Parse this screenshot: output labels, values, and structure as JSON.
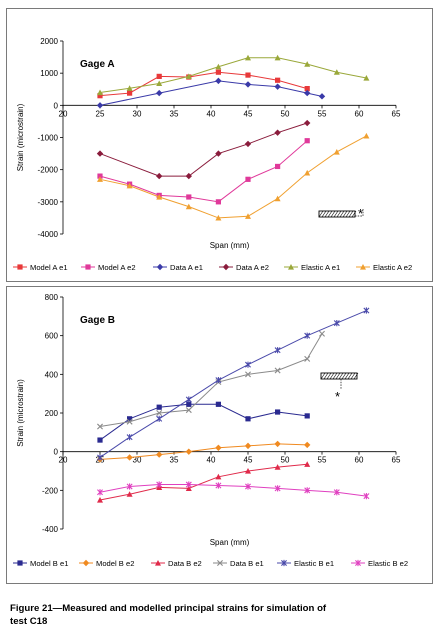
{
  "caption": {
    "line1": "Figure 21—Measured and modelled principal strains for simulation of",
    "line2": "test C18"
  },
  "chart_data": [
    {
      "type": "line",
      "title": "Gage A",
      "xlabel": "Span (mm)",
      "ylabel": "Strain (microstrain)",
      "xlim": [
        20,
        65
      ],
      "ylim": [
        -4000,
        2000
      ],
      "xticks": [
        20,
        25,
        30,
        35,
        40,
        45,
        50,
        55,
        60,
        65
      ],
      "yticks": [
        -4000,
        -3000,
        -2000,
        -1000,
        0,
        1000,
        2000
      ],
      "legend_position": "bottom",
      "series": [
        {
          "name": "Model A e1",
          "color": "#e8393a",
          "marker": "square",
          "x": [
            25,
            29,
            33,
            37,
            41,
            45,
            49,
            53
          ],
          "y": [
            300,
            380,
            900,
            880,
            1030,
            940,
            780,
            520
          ]
        },
        {
          "name": "Model A e2",
          "color": "#e0399a",
          "marker": "square",
          "x": [
            25,
            29,
            33,
            37,
            41,
            45,
            49,
            53
          ],
          "y": [
            -2200,
            -2450,
            -2800,
            -2850,
            -3000,
            -2300,
            -1900,
            -1100
          ]
        },
        {
          "name": "Data A e1",
          "color": "#3a3aa8",
          "marker": "diamond",
          "x": [
            25,
            33,
            41,
            45,
            49,
            53,
            55
          ],
          "y": [
            0,
            380,
            760,
            650,
            580,
            380,
            280
          ]
        },
        {
          "name": "Data A e2",
          "color": "#8a1c3c",
          "marker": "diamond",
          "x": [
            25,
            33,
            37,
            41,
            45,
            49,
            53
          ],
          "y": [
            -1500,
            -2200,
            -2200,
            -1500,
            -1200,
            -850,
            -550
          ]
        },
        {
          "name": "Elastic A e1",
          "color": "#9aa83a",
          "marker": "triangle",
          "x": [
            25,
            29,
            33,
            37,
            41,
            45,
            49,
            53,
            57,
            61
          ],
          "y": [
            400,
            530,
            680,
            900,
            1200,
            1480,
            1480,
            1280,
            1030,
            850
          ]
        },
        {
          "name": "Elastic A e2",
          "color": "#f0a030",
          "marker": "triangle",
          "x": [
            25,
            29,
            33,
            37,
            41,
            45,
            49,
            53,
            57,
            61
          ],
          "y": [
            -2300,
            -2500,
            -2850,
            -3150,
            -3500,
            -3450,
            -2900,
            -2100,
            -1450,
            -950
          ]
        }
      ],
      "annotation": "*"
    },
    {
      "type": "line",
      "title": "Gage B",
      "xlabel": "Span (mm)",
      "ylabel": "Strain (microstrain)",
      "xlim": [
        20,
        65
      ],
      "ylim": [
        -400,
        800
      ],
      "xticks": [
        20,
        25,
        30,
        35,
        40,
        45,
        50,
        55,
        60,
        65
      ],
      "yticks": [
        -400,
        -200,
        0,
        200,
        400,
        600,
        800
      ],
      "legend_position": "bottom",
      "series": [
        {
          "name": "Model B e1",
          "color": "#2a2a90",
          "marker": "square",
          "x": [
            25,
            29,
            33,
            37,
            41,
            45,
            49,
            53
          ],
          "y": [
            60,
            170,
            230,
            245,
            245,
            170,
            205,
            185
          ]
        },
        {
          "name": "Model B e2",
          "color": "#f08a20",
          "marker": "diamond",
          "x": [
            25,
            29,
            33,
            37,
            41,
            45,
            49,
            53
          ],
          "y": [
            -40,
            -30,
            -15,
            0,
            20,
            30,
            40,
            35
          ]
        },
        {
          "name": "Data B e2",
          "color": "#e02a4a",
          "marker": "triangle",
          "x": [
            25,
            29,
            33,
            37,
            41,
            45,
            49,
            53
          ],
          "y": [
            -250,
            -220,
            -185,
            -190,
            -130,
            -100,
            -80,
            -65
          ]
        },
        {
          "name": "Data B e1",
          "color": "#8a8a8a",
          "marker": "x",
          "x": [
            25,
            29,
            33,
            37,
            41,
            45,
            49,
            53,
            55
          ],
          "y": [
            130,
            155,
            200,
            215,
            360,
            400,
            420,
            480,
            610
          ]
        },
        {
          "name": "Elastic B e1",
          "color": "#4a4aaa",
          "marker": "star",
          "x": [
            25,
            29,
            33,
            37,
            41,
            45,
            49,
            53,
            57,
            61
          ],
          "y": [
            -30,
            75,
            170,
            270,
            370,
            450,
            525,
            600,
            665,
            730
          ]
        },
        {
          "name": "Elastic B e2",
          "color": "#e040c0",
          "marker": "star",
          "x": [
            25,
            29,
            33,
            37,
            41,
            45,
            49,
            53,
            57,
            61
          ],
          "y": [
            -210,
            -180,
            -170,
            -170,
            -175,
            -180,
            -190,
            -200,
            -210,
            -230
          ]
        }
      ],
      "annotation": "*"
    }
  ]
}
